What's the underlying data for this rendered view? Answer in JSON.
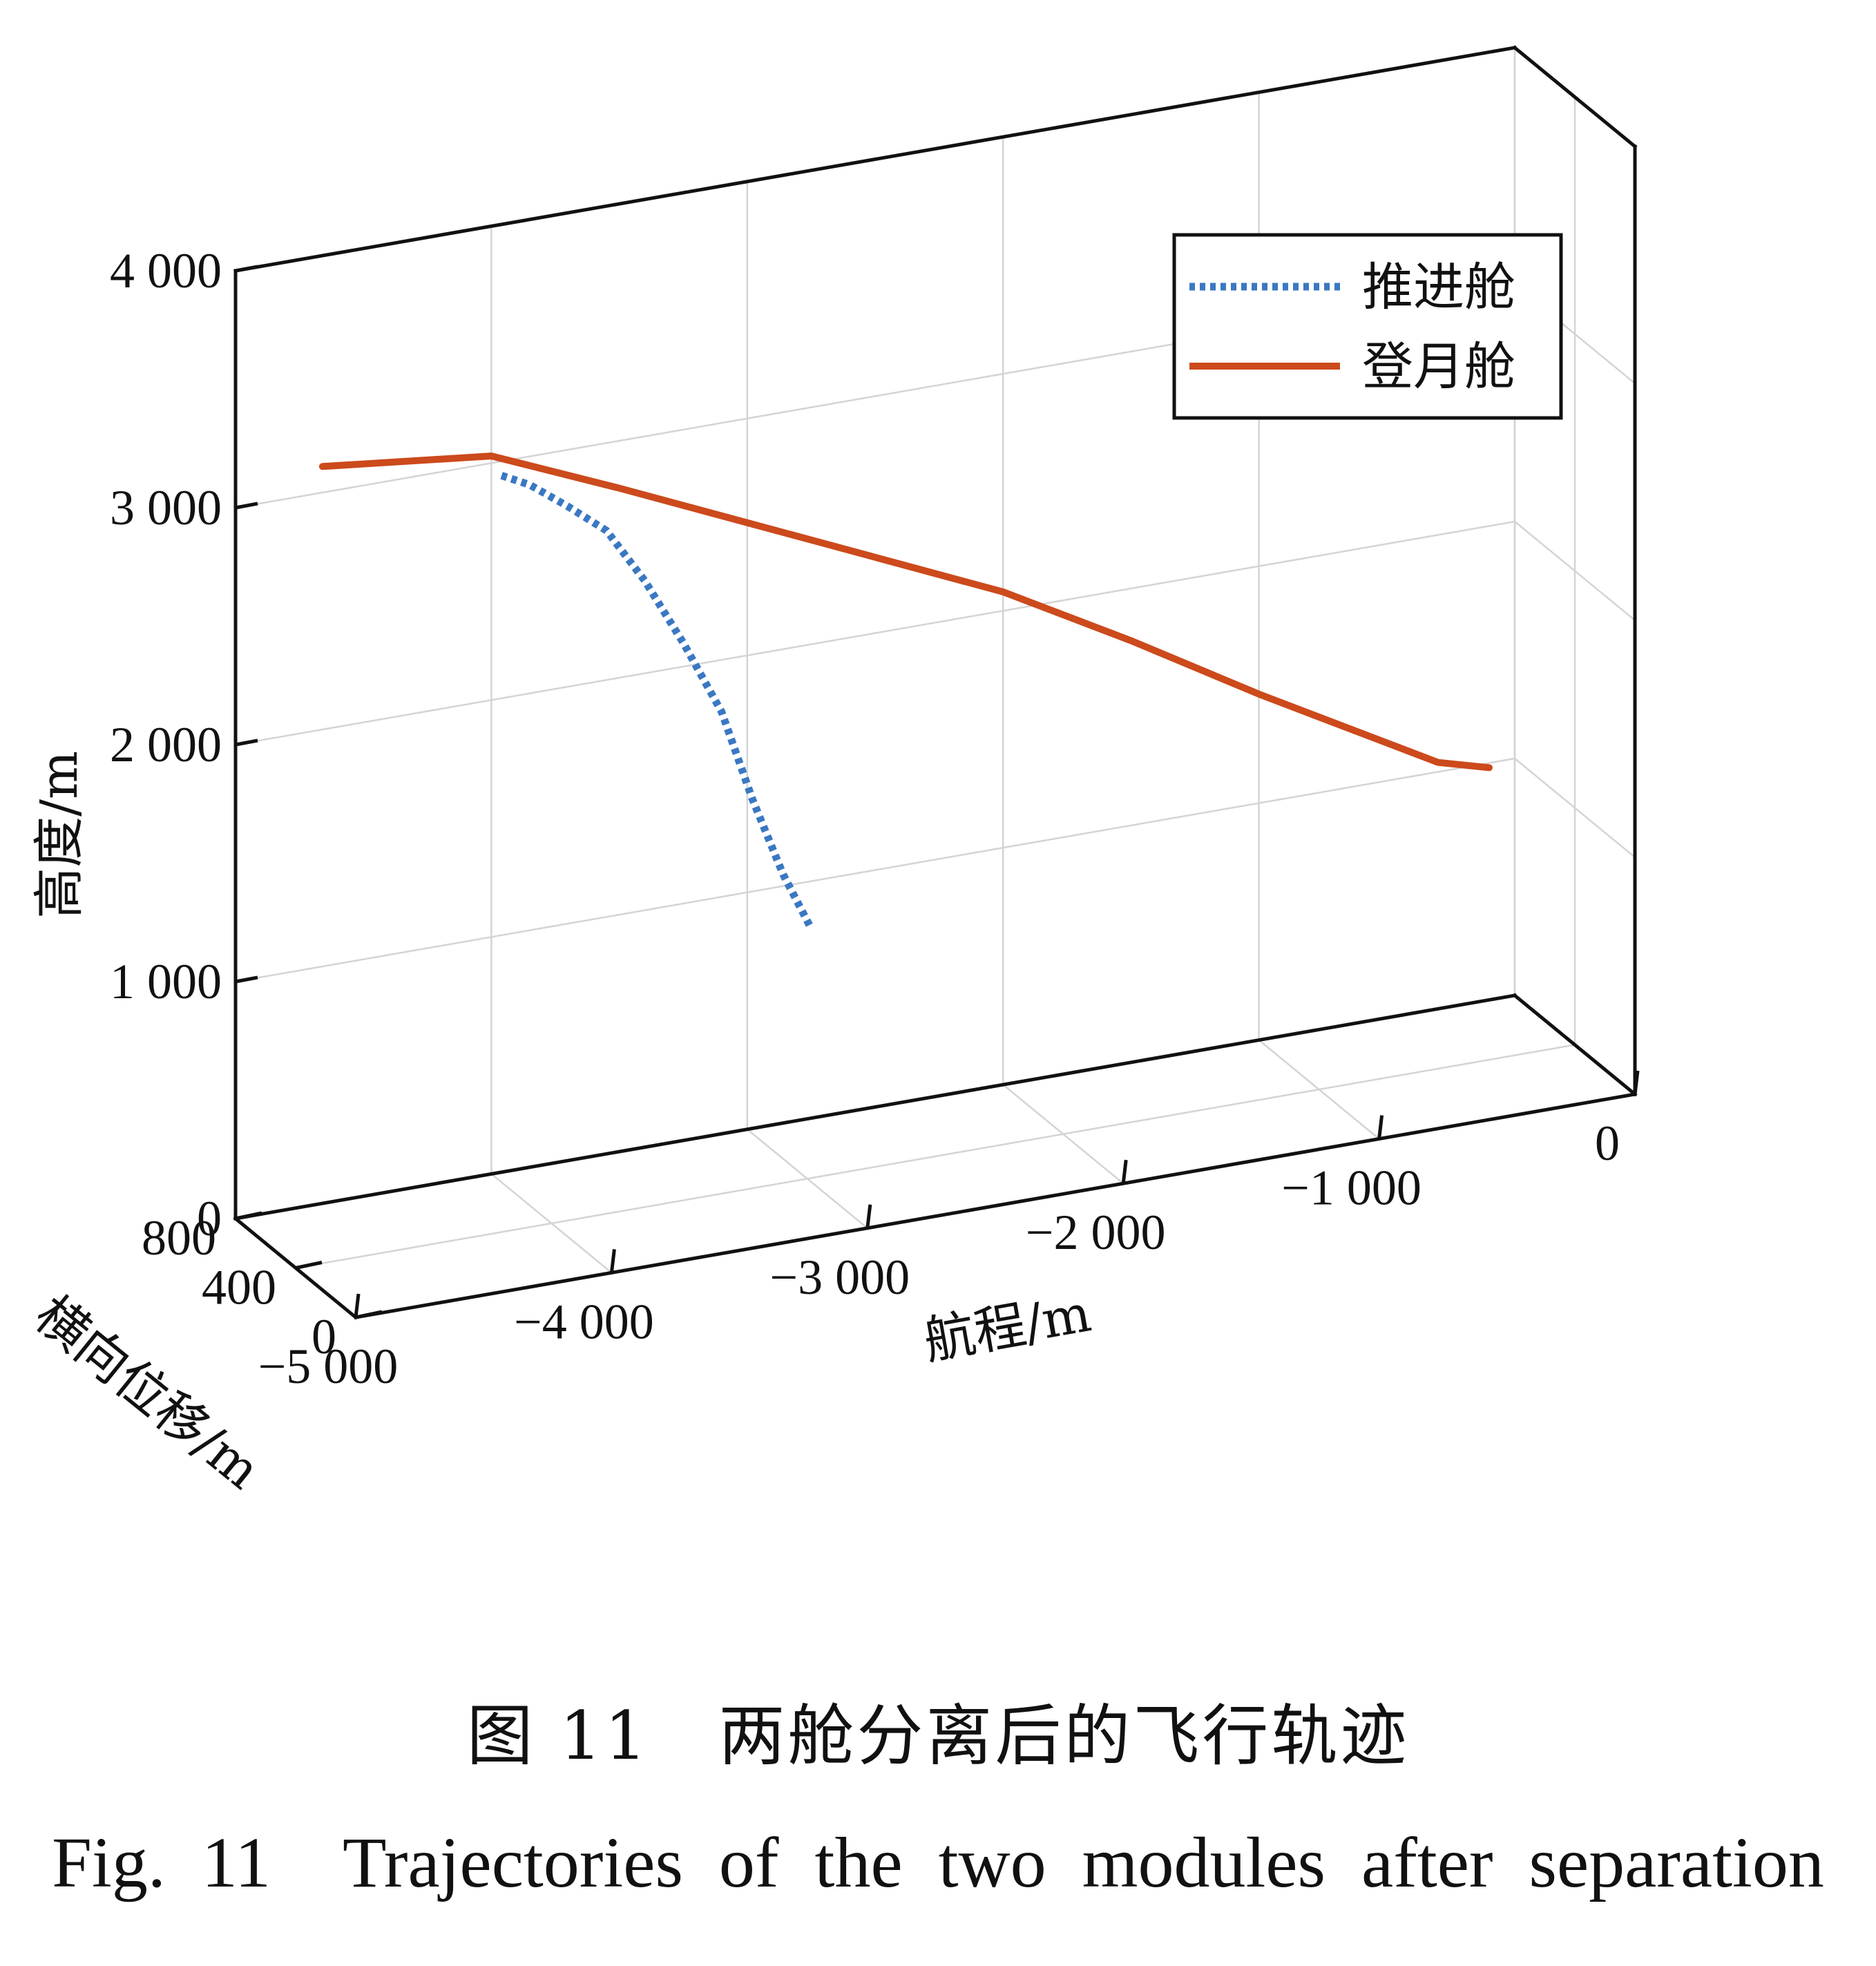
{
  "chart_data": {
    "type": "line",
    "dimensions": "3d",
    "axes": {
      "x": {
        "label": "航程/m",
        "range": [
          -5000,
          0
        ],
        "ticks": [
          -5000,
          -4000,
          -3000,
          -2000,
          -1000,
          0
        ],
        "tick_labels": [
          "−5 000",
          "−4 000",
          "−3 000",
          "−2 000",
          "−1 000",
          "0"
        ]
      },
      "y": {
        "label": "横向位移/m",
        "range": [
          0,
          800
        ],
        "ticks": [
          0,
          400,
          800
        ],
        "tick_labels": [
          "0",
          "400",
          "800"
        ]
      },
      "z": {
        "label": "高度/m",
        "range": [
          0,
          4000
        ],
        "ticks": [
          0,
          1000,
          2000,
          3000,
          4000
        ],
        "tick_labels": [
          "0",
          "1 000",
          "2 000",
          "3 000",
          "4 000"
        ]
      }
    },
    "grid": true,
    "legend_position": "top-right",
    "series": [
      {
        "name": "推进舱",
        "style": "dotted",
        "color": "#3a78c2",
        "x": [
          -3960,
          -3850,
          -3700,
          -3550,
          -3400,
          -3250,
          -3100,
          -2980,
          -2860,
          -2750
        ],
        "y": [
          800,
          800,
          800,
          800,
          800,
          800,
          800,
          800,
          800,
          800
        ],
        "z": [
          2940,
          2880,
          2760,
          2630,
          2390,
          2100,
          1780,
          1390,
          1050,
          800
        ]
      },
      {
        "name": "登月舱",
        "style": "solid",
        "color": "#cc4a1c",
        "x": [
          -4660,
          -4000,
          -3500,
          -3000,
          -2500,
          -2000,
          -1500,
          -1000,
          -600,
          -300,
          -100
        ],
        "y": [
          800,
          800,
          800,
          800,
          800,
          800,
          800,
          800,
          800,
          800,
          800
        ],
        "z": [
          3110,
          3030,
          2800,
          2560,
          2320,
          2080,
          1780,
          1460,
          1220,
          1040,
          980
        ]
      }
    ]
  },
  "caption": {
    "chinese": "图 11　两舱分离后的飞行轨迹",
    "english": "Fig. 11　Trajectories of the two modules after separation"
  }
}
